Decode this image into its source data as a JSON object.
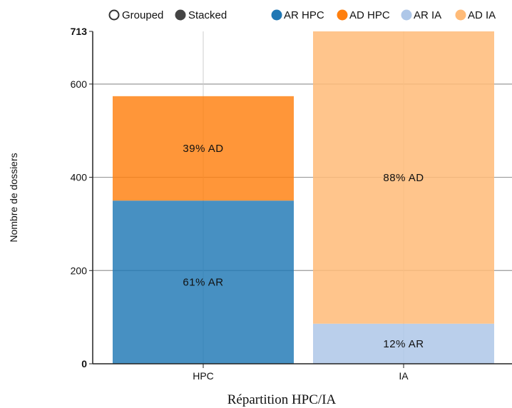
{
  "controls": {
    "mode_options": [
      {
        "label": "Grouped",
        "selected": false
      },
      {
        "label": "Stacked",
        "selected": true
      }
    ]
  },
  "legend": [
    {
      "label": "AR HPC",
      "color": "#1f77b4"
    },
    {
      "label": "AD HPC",
      "color": "#ff7f0e"
    },
    {
      "label": "AR IA",
      "color": "#aec7e8"
    },
    {
      "label": "AD IA",
      "color": "#ffbb78"
    }
  ],
  "chart_data": {
    "type": "bar",
    "stacked": true,
    "categories": [
      "HPC",
      "IA"
    ],
    "series": [
      {
        "name": "AR HPC",
        "values": [
          350,
          null
        ],
        "color": "#1f77b4"
      },
      {
        "name": "AD HPC",
        "values": [
          224,
          null
        ],
        "color": "#ff7f0e"
      },
      {
        "name": "AR IA",
        "values": [
          null,
          86
        ],
        "color": "#aec7e8"
      },
      {
        "name": "AD IA",
        "values": [
          null,
          627
        ],
        "color": "#ffbb78"
      }
    ],
    "bar_labels": [
      {
        "category": "HPC",
        "series": "AR HPC",
        "text": "61% AR"
      },
      {
        "category": "HPC",
        "series": "AD HPC",
        "text": "39% AD"
      },
      {
        "category": "IA",
        "series": "AR IA",
        "text": "12% AR"
      },
      {
        "category": "IA",
        "series": "AD IA",
        "text": "88% AD"
      }
    ],
    "yticks": [
      0,
      200,
      400,
      600,
      713
    ],
    "ylim": [
      0,
      713
    ],
    "xlabel": "Répartition HPC/IA",
    "ylabel": "Nombre de dossiers",
    "grid": true,
    "legend_position": "top"
  }
}
